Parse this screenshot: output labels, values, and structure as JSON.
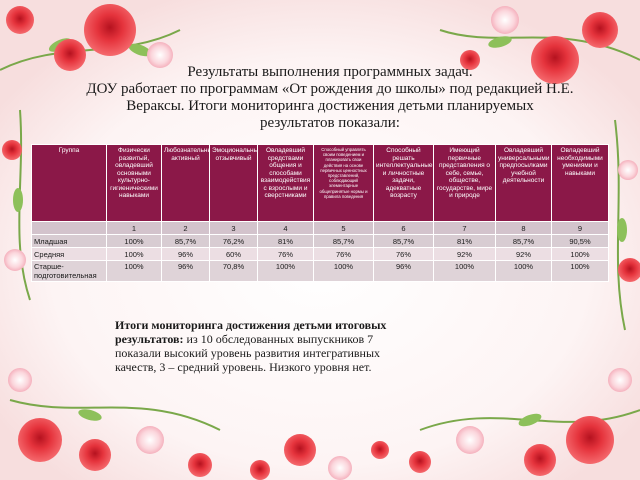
{
  "title": {
    "line1": "Результаты выполнения программных задач.",
    "line2": "ДОУ работает по программам «От рождения до школы» под редакцией Н.Е.",
    "line3": "Вераксы. Итоги мониторинга достижения детьми планируемых",
    "line4": "результатов показали:"
  },
  "table": {
    "headers": [
      "Группа",
      "Физически развитый, овладевший основными культурно-гигиеническими навыками",
      "Любознательный активный",
      "Эмоциональный отзывчивый",
      "Овладевший средствами общения и способами взаимодействия с взрослыми и сверстниками",
      "Способный управлять своим поведением и планировать свои действия на основе первичных ценностных представлений, соблюдающий элементарные общепринятые нормы и правила поведения",
      "Способный решать интеллектуальные и личностные задачи, адекватные возрасту",
      "Имеющий первичные представления о себе, семье, обществе, государстве, мире и природе",
      "Овладевший универсальными предпосылками учебной деятельности",
      "Овладевший необходимыми умениями и навыками"
    ],
    "numbers": [
      "",
      "1",
      "2",
      "3",
      "4",
      "5",
      "6",
      "7",
      "8",
      "9"
    ],
    "rows": [
      {
        "group": "Младшая",
        "values": [
          "100%",
          "85,7%",
          "76,2%",
          "81%",
          "85,7%",
          "85,7%",
          "81%",
          "85,7%",
          "90,5%"
        ]
      },
      {
        "group": "Средняя",
        "values": [
          "100%",
          "96%",
          "60%",
          "76%",
          "76%",
          "76%",
          "92%",
          "92%",
          "100%"
        ]
      },
      {
        "group": "Старше-подготовительная",
        "values": [
          "100%",
          "96%",
          "70,8%",
          "100%",
          "100%",
          "96%",
          "100%",
          "100%",
          "100%"
        ]
      }
    ]
  },
  "summary": {
    "bold": "Итоги мониторинга достижения детьми итоговых результатов:",
    "text": " из 10 обследованных выпускников 7 показали высокий уровень развития интегративных качеств, 3 – средний уровень. Низкого уровня нет."
  },
  "colors": {
    "header_bg": "#8b1848",
    "row_bg": "#d8ccd2",
    "accent_rose": "#e8333f"
  }
}
